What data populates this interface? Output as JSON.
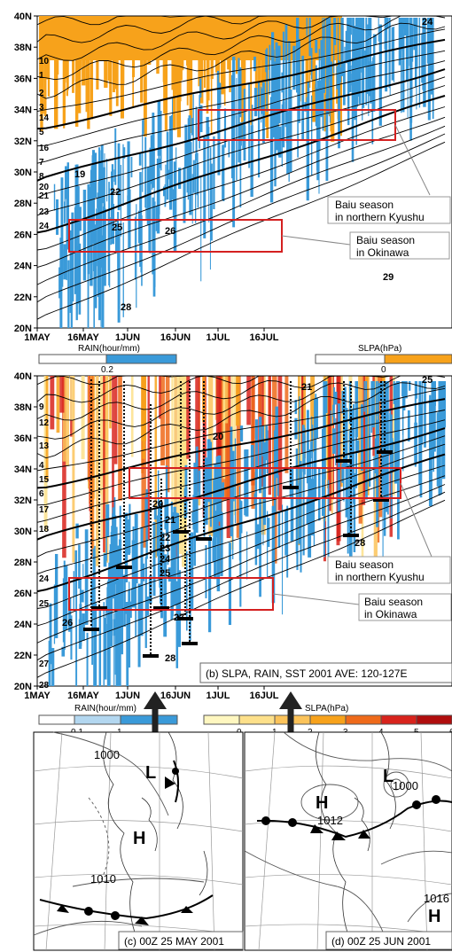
{
  "panel_a": {
    "y_ticks": [
      "40N",
      "38N",
      "36N",
      "34N",
      "32N",
      "30N",
      "28N",
      "26N",
      "24N",
      "22N",
      "20N"
    ],
    "x_ticks": [
      "1MAY",
      "16MAY",
      "1JUN",
      "16JUN",
      "1JUL",
      "16JUL"
    ],
    "contour_labels_left": [
      "10",
      "1",
      "2",
      "3",
      "14",
      "5",
      "16",
      "7",
      "8",
      "20",
      "21",
      "23",
      "24"
    ],
    "contour_labels_inner": [
      "19",
      "22",
      "25",
      "26",
      "28",
      "29",
      "24"
    ],
    "callouts": [
      {
        "line1": "Baiu season",
        "line2": "in northern Kyushu"
      },
      {
        "line1": "Baiu season",
        "line2": "in Okinawa"
      }
    ],
    "rain_legend": {
      "title": "RAIN(hour/mm)",
      "tick": "0.2"
    },
    "slpa_legend": {
      "title": "SLPA(hPa)",
      "tick": "0"
    }
  },
  "panel_b": {
    "y_ticks": [
      "40N",
      "38N",
      "36N",
      "34N",
      "32N",
      "30N",
      "28N",
      "26N",
      "24N",
      "22N",
      "20N"
    ],
    "x_ticks": [
      "1MAY",
      "16MAY",
      "1JUN",
      "16JUN",
      "1JUL",
      "16JUL"
    ],
    "contour_labels_left": [
      "9",
      "12",
      "13",
      "4",
      "15",
      "6",
      "17",
      "18",
      "24",
      "25",
      "27",
      "28"
    ],
    "contour_labels_inner": [
      "21",
      "20",
      "20",
      "21",
      "22",
      "23",
      "24",
      "25",
      "26",
      "27",
      "28",
      "28",
      "25"
    ],
    "callouts": [
      {
        "line1": "Baiu season",
        "line2": "in northern Kyushu"
      },
      {
        "line1": "Baiu season",
        "line2": "in Okinawa"
      }
    ],
    "title": "(b) SLPA, RAIN, SST 2001 AVE: 120-127E",
    "rain_legend": {
      "title": "RAIN(hour/mm)",
      "ticks": [
        "0.1",
        "1"
      ]
    },
    "slpa_legend": {
      "title": "SLPA(hPa)",
      "ticks": [
        "0",
        "1",
        "2",
        "3",
        "4",
        "5",
        "6"
      ]
    }
  },
  "map_c": {
    "caption": "(c) 00Z 25 MAY 2001",
    "labels": [
      "1000",
      "H",
      "1010"
    ],
    "low": "L"
  },
  "map_d": {
    "caption": "(d) 00Z 25 JUN 2001",
    "labels": [
      "H",
      "1012",
      "L",
      "1000",
      "1016",
      "H"
    ]
  },
  "colors": {
    "rain": "#3a9ad9",
    "slpa_orange": "#f7a21b",
    "box": "#d42020",
    "slpa_scale": [
      "#fff7c0",
      "#fde08a",
      "#fbc35a",
      "#f7a21b",
      "#ef6a1a",
      "#d8231c",
      "#b00d0d"
    ]
  },
  "chart_data": [
    {
      "type": "heatmap",
      "description_axes": {
        "x": "date (1 May - 31 Jul 2001)",
        "y": "latitude"
      },
      "xlabel": "",
      "ylabel": "",
      "x_ticks": [
        "1MAY",
        "16MAY",
        "1JUN",
        "16JUN",
        "1JUL",
        "16JUL"
      ],
      "y_range": [
        20,
        40
      ],
      "boxes": [
        {
          "x": [
            "~5JUN",
            "~20JUL"
          ],
          "y": [
            32,
            34
          ]
        },
        {
          "x": [
            "~5MAY",
            "~26JUN"
          ],
          "y": [
            25,
            27
          ]
        }
      ]
    },
    {
      "type": "heatmap",
      "x_ticks": [
        "1MAY",
        "16MAY",
        "1JUN",
        "16JUN",
        "1JUL",
        "16JUL"
      ],
      "y_range": [
        20,
        40
      ],
      "boxes": [
        {
          "x": [
            "~1JUN",
            "~20JUL"
          ],
          "y": [
            32,
            34
          ]
        },
        {
          "x": [
            "~5MAY",
            "~26JUN"
          ],
          "y": [
            25,
            27
          ]
        }
      ]
    }
  ]
}
